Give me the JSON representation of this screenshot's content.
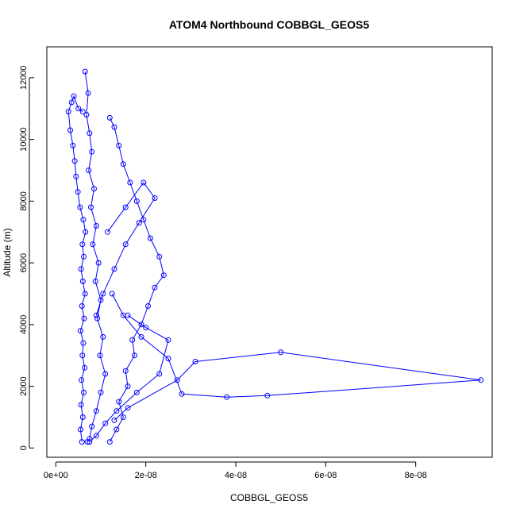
{
  "chart_data": {
    "type": "line",
    "title": "ATOM4 Northbound COBBGL_GEOS5",
    "xlabel": "COBBGL_GEOS5",
    "ylabel": "Altitude (m)",
    "xlim": [
      -2e-09,
      9.7e-08
    ],
    "ylim": [
      -300,
      13000
    ],
    "x_ticks": [
      0,
      2e-08,
      4e-08,
      6e-08,
      8e-08
    ],
    "x_tick_labels": [
      "0e+00",
      "2e-08",
      "4e-08",
      "6e-08",
      "8e-08"
    ],
    "y_ticks": [
      0,
      2000,
      4000,
      6000,
      8000,
      10000,
      12000
    ],
    "y_tick_labels": [
      "0",
      "2000",
      "4000",
      "6000",
      "8000",
      "10000",
      "12000"
    ],
    "grid": false,
    "color": "#0000ff",
    "marker": "open-circle",
    "series": [
      {
        "x": [
          5.8e-09,
          5.5e-09,
          6e-09,
          5.6e-09,
          6.2e-09,
          5.7e-09,
          6.4e-09,
          5.9e-09,
          6.1e-09,
          5.5e-09,
          6.3e-09,
          5.8e-09,
          6.5e-09,
          6e-09,
          5.6e-09,
          6.2e-09,
          5.9e-09,
          6.6e-09,
          6.1e-09,
          5.4e-09,
          4.9e-09,
          4.5e-09,
          4.2e-09,
          3.8e-09,
          3.2e-09,
          2.8e-09,
          3.5e-09,
          4e-09,
          5e-09,
          6e-09
        ],
        "y": [
          200,
          600,
          1000,
          1400,
          1800,
          2200,
          2600,
          3000,
          3400,
          3800,
          4200,
          4600,
          5000,
          5400,
          5800,
          6200,
          6600,
          7000,
          7400,
          7800,
          8300,
          8800,
          9300,
          9800,
          10300,
          10900,
          11200,
          11400,
          11000,
          10900
        ]
      },
      {
        "x": [
          6.5e-09,
          7.2e-09,
          6.8e-09,
          7.5e-09,
          8e-09,
          7.3e-09,
          8.5e-09,
          7.8e-09,
          9e-09,
          8.2e-09,
          9.5e-09,
          8.8e-09,
          1e-08,
          9.2e-09,
          1.05e-08,
          9.8e-09,
          1.1e-08,
          1e-08,
          9e-09,
          8e-09,
          7.5e-09,
          7e-09
        ],
        "y": [
          12200,
          11500,
          10800,
          10200,
          9600,
          9000,
          8400,
          7800,
          7200,
          6600,
          6000,
          5400,
          4800,
          4200,
          3600,
          3000,
          2400,
          1800,
          1200,
          700,
          300,
          200
        ]
      },
      {
        "x": [
          1.2e-08,
          1.35e-08,
          1.5e-08,
          1.4e-08,
          1.6e-08,
          1.55e-08,
          1.75e-08,
          1.7e-08,
          1.9e-08,
          2.05e-08,
          2.2e-08,
          2.4e-08,
          2.3e-08,
          2.1e-08,
          1.95e-08,
          1.8e-08,
          1.65e-08,
          1.5e-08,
          1.4e-08,
          1.3e-08,
          1.2e-08
        ],
        "y": [
          200,
          600,
          1000,
          1500,
          2000,
          2500,
          3000,
          3500,
          4000,
          4600,
          5200,
          5600,
          6200,
          6800,
          7400,
          8000,
          8600,
          9200,
          9800,
          10400,
          10700
        ]
      },
      {
        "x": [
          1.3e-08,
          1.6e-08,
          2.7e-08,
          3.1e-08,
          5e-08,
          9.45e-08,
          4.7e-08,
          3.8e-08,
          2.8e-08,
          2.5e-08,
          1.9e-08,
          1.5e-08,
          1.25e-08
        ],
        "y": [
          900,
          1300,
          2200,
          2800,
          3100,
          2200,
          1700,
          1650,
          1750,
          2900,
          3600,
          4300,
          5000
        ]
      },
      {
        "x": [
          1.6e-08,
          2e-08,
          2.5e-08,
          2.3e-08,
          1.8e-08,
          1.35e-08,
          1.1e-08,
          9e-09,
          7.5e-09
        ],
        "y": [
          4300,
          3900,
          3500,
          2400,
          1800,
          1200,
          800,
          400,
          200
        ]
      },
      {
        "x": [
          1.15e-08,
          1.55e-08,
          1.95e-08,
          2.2e-08,
          1.85e-08,
          1.55e-08,
          1.3e-08,
          1.05e-08,
          9e-09
        ],
        "y": [
          7000,
          7800,
          8600,
          8100,
          7300,
          6600,
          5800,
          5000,
          4300
        ]
      }
    ]
  }
}
